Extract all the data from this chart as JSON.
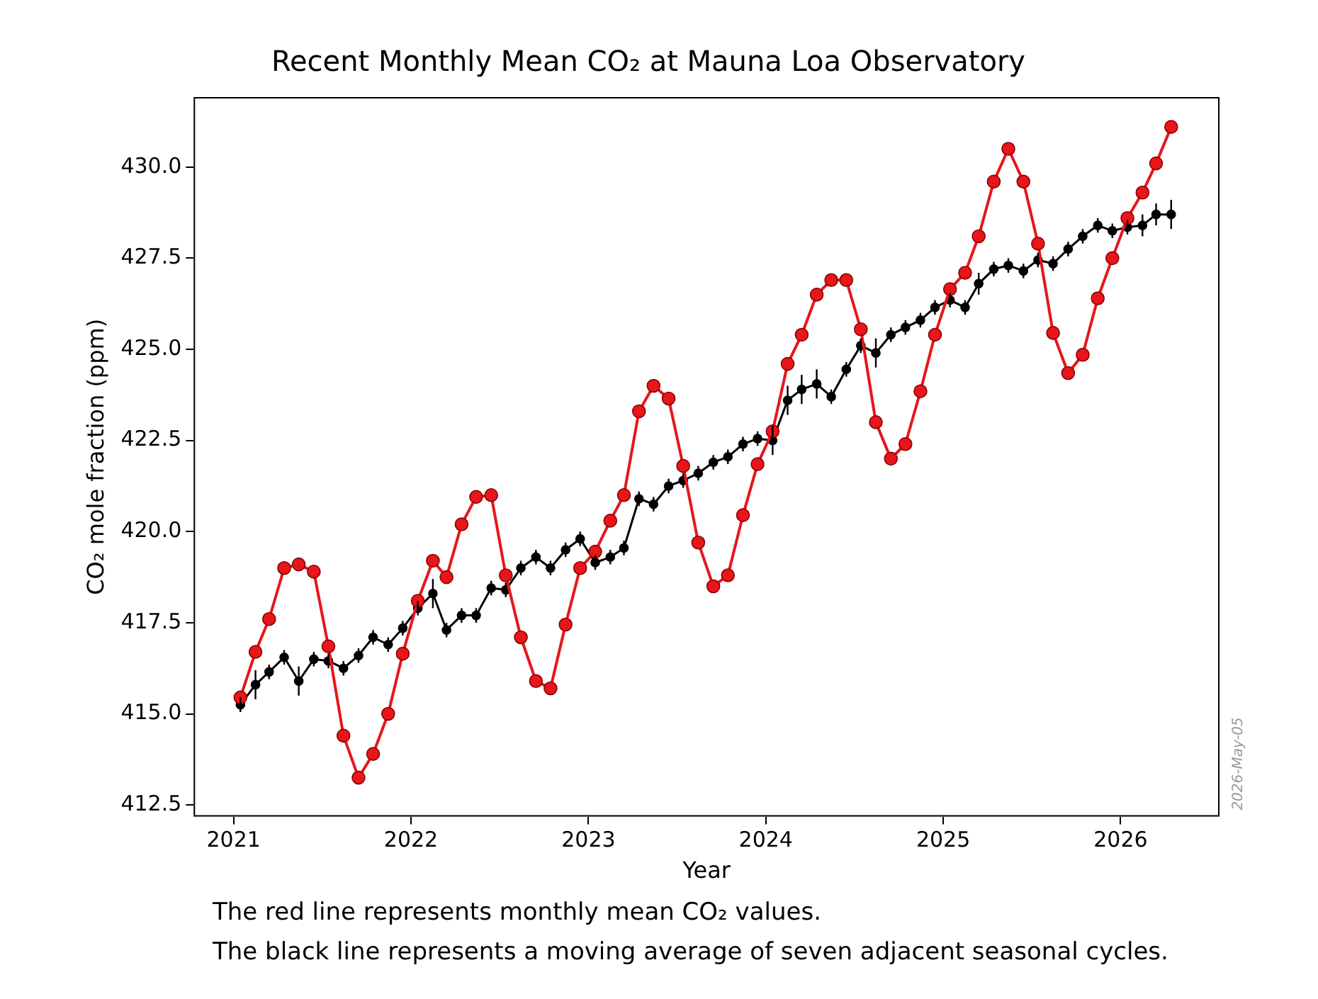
{
  "chart_data": {
    "type": "line",
    "title": "Recent Monthly Mean CO₂ at Mauna Loa Observatory",
    "xlabel": "Year",
    "ylabel": "CO₂ mole fraction (ppm)",
    "annotations": [
      "The red line represents monthly mean CO₂ values.",
      "The black line represents a moving average of seven adjacent seasonal cycles.",
      "2026-May-05"
    ],
    "x": [
      "2021-01-15",
      "2021-02-15",
      "2021-03-15",
      "2021-04-15",
      "2021-05-15",
      "2021-06-15",
      "2021-07-15",
      "2021-08-15",
      "2021-09-15",
      "2021-10-15",
      "2021-11-15",
      "2021-12-15",
      "2022-01-15",
      "2022-02-15",
      "2022-03-15",
      "2022-04-15",
      "2022-05-15",
      "2022-06-15",
      "2022-07-15",
      "2022-08-15",
      "2022-09-15",
      "2022-10-15",
      "2022-11-15",
      "2022-12-15",
      "2023-01-15",
      "2023-02-15",
      "2023-03-15",
      "2023-04-15",
      "2023-05-15",
      "2023-06-15",
      "2023-07-15",
      "2023-08-15",
      "2023-09-15",
      "2023-10-15",
      "2023-11-15",
      "2023-12-15",
      "2024-01-15",
      "2024-02-15",
      "2024-03-15",
      "2024-04-15",
      "2024-05-15",
      "2024-06-15",
      "2024-07-15",
      "2024-08-15",
      "2024-09-15",
      "2024-10-15",
      "2024-11-15",
      "2024-12-15",
      "2025-01-15",
      "2025-02-15",
      "2025-03-15",
      "2025-04-15",
      "2025-05-15",
      "2025-06-15",
      "2025-07-15",
      "2025-08-15",
      "2025-09-15",
      "2025-10-15",
      "2025-11-15",
      "2025-12-15",
      "2026-01-15",
      "2026-02-15",
      "2026-03-15",
      "2026-04-15"
    ],
    "series": [
      {
        "color": "#e8161b",
        "values": [
          415.45,
          416.7,
          417.6,
          419.0,
          419.1,
          418.9,
          416.85,
          414.4,
          413.25,
          413.9,
          415.0,
          416.65,
          418.1,
          419.2,
          418.75,
          420.2,
          420.95,
          421.0,
          418.8,
          417.1,
          415.9,
          415.7,
          417.45,
          419.0,
          419.45,
          420.3,
          421.0,
          423.3,
          424.0,
          423.65,
          421.8,
          419.7,
          418.5,
          418.8,
          420.45,
          421.85,
          422.75,
          424.6,
          425.4,
          426.5,
          426.9,
          426.9,
          425.55,
          423.0,
          422.0,
          422.4,
          423.85,
          425.4,
          426.65,
          427.1,
          428.1,
          429.6,
          430.5,
          429.6,
          427.9,
          425.45,
          424.35,
          424.85,
          426.4,
          427.5,
          428.6,
          429.3,
          430.1,
          431.1
        ]
      },
      {
        "color": "#000000",
        "values": [
          415.25,
          415.8,
          416.15,
          416.55,
          415.9,
          416.5,
          416.45,
          416.25,
          416.6,
          417.1,
          416.9,
          417.35,
          417.9,
          418.3,
          417.3,
          417.7,
          417.7,
          418.45,
          418.4,
          419.0,
          419.3,
          419.0,
          419.5,
          419.8,
          419.15,
          419.3,
          419.55,
          420.9,
          420.75,
          421.25,
          421.4,
          421.6,
          421.9,
          422.05,
          422.4,
          422.55,
          422.5,
          423.6,
          423.9,
          424.05,
          423.7,
          424.45,
          425.1,
          424.9,
          425.4,
          425.6,
          425.8,
          426.15,
          426.35,
          426.15,
          426.8,
          427.2,
          427.3,
          427.15,
          427.45,
          427.35,
          427.75,
          428.1,
          428.4,
          428.25,
          428.35,
          428.4,
          428.7,
          428.7
        ],
        "errors": [
          0.2,
          0.4,
          0.2,
          0.2,
          0.4,
          0.2,
          0.2,
          0.2,
          0.2,
          0.2,
          0.2,
          0.2,
          0.2,
          0.4,
          0.2,
          0.2,
          0.2,
          0.2,
          0.2,
          0.2,
          0.2,
          0.2,
          0.2,
          0.2,
          0.2,
          0.2,
          0.2,
          0.2,
          0.2,
          0.2,
          0.2,
          0.2,
          0.2,
          0.2,
          0.2,
          0.2,
          0.4,
          0.4,
          0.4,
          0.4,
          0.2,
          0.2,
          0.2,
          0.4,
          0.2,
          0.2,
          0.2,
          0.2,
          0.2,
          0.2,
          0.3,
          0.2,
          0.2,
          0.2,
          0.2,
          0.2,
          0.2,
          0.2,
          0.2,
          0.2,
          0.2,
          0.3,
          0.3,
          0.4
        ]
      }
    ],
    "xlim": [
      "2020-10-12",
      "2026-07-22"
    ],
    "xticks": [
      "2021",
      "2022",
      "2023",
      "2024",
      "2025",
      "2026"
    ],
    "ylim": [
      412.2,
      431.9
    ],
    "yticks": [
      {
        "value": 412.5,
        "label": "412.5"
      },
      {
        "value": 415,
        "label": "415.0"
      },
      {
        "value": 417.5,
        "label": "417.5"
      },
      {
        "value": 420,
        "label": "420.0"
      },
      {
        "value": 422.5,
        "label": "422.5"
      },
      {
        "value": 425,
        "label": "425.0"
      },
      {
        "value": 427.5,
        "label": "427.5"
      },
      {
        "value": 430,
        "label": "430.0"
      }
    ],
    "grid": false,
    "legend": false,
    "marker": "circle",
    "line_style": "solid"
  }
}
